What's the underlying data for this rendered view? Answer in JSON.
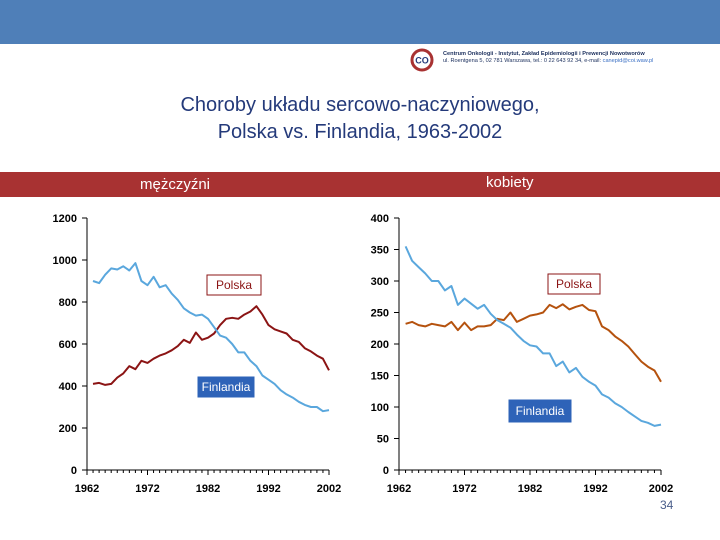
{
  "header": {
    "institution_line1": "Centrum Onkologii - Instytut, Zakład Epidemiologii i Prewencji Nowotworów",
    "institution_line2": "ul. Roentgena 5, 02 781 Warszawa, tel.: 0 22 643 92 34, e-mail:",
    "institution_email": "canepid@coi.waw.pl",
    "logo_text": "CO"
  },
  "slide": {
    "title_line1": "Choroby układu sercowo-naczyniowego,",
    "title_line2": "Polska vs. Finlandia, 1963-2002",
    "page_number": "34"
  },
  "colors": {
    "header_bar": "#4f7fb8",
    "band": "#a83232",
    "polska": "#8b1414",
    "polska_women": "#b5520e",
    "finlandia": "#5aa7dd",
    "finlandia_label_bg": "#2e63b8"
  },
  "chart_data": [
    {
      "type": "line",
      "title": "mężczyźni",
      "xlabel": "",
      "ylabel": "",
      "xlim": [
        1962,
        2002
      ],
      "ylim": [
        0,
        1200
      ],
      "x_ticks": [
        1962,
        1972,
        1982,
        1992,
        2002
      ],
      "y_ticks": [
        0,
        200,
        400,
        600,
        800,
        1000,
        1200
      ],
      "grid": false,
      "series": [
        {
          "name": "Polska",
          "label": "Polska",
          "x": [
            1963,
            1964,
            1965,
            1966,
            1967,
            1968,
            1969,
            1970,
            1971,
            1972,
            1973,
            1974,
            1975,
            1976,
            1977,
            1978,
            1979,
            1980,
            1981,
            1982,
            1983,
            1984,
            1985,
            1986,
            1987,
            1988,
            1989,
            1990,
            1991,
            1992,
            1993,
            1994,
            1995,
            1996,
            1997,
            1998,
            1999,
            2000,
            2001,
            2002
          ],
          "y": [
            410,
            415,
            405,
            410,
            440,
            460,
            495,
            480,
            520,
            510,
            530,
            545,
            555,
            570,
            590,
            620,
            605,
            655,
            620,
            630,
            650,
            690,
            720,
            725,
            720,
            740,
            755,
            780,
            740,
            690,
            670,
            660,
            650,
            620,
            610,
            580,
            565,
            545,
            530,
            475
          ]
        },
        {
          "name": "Finlandia",
          "label": "Finlandia",
          "x": [
            1963,
            1964,
            1965,
            1966,
            1967,
            1968,
            1969,
            1970,
            1971,
            1972,
            1973,
            1974,
            1975,
            1976,
            1977,
            1978,
            1979,
            1980,
            1981,
            1982,
            1983,
            1984,
            1985,
            1986,
            1987,
            1988,
            1989,
            1990,
            1991,
            1992,
            1993,
            1994,
            1995,
            1996,
            1997,
            1998,
            1999,
            2000,
            2001,
            2002
          ],
          "y": [
            900,
            890,
            930,
            960,
            955,
            970,
            950,
            985,
            900,
            880,
            920,
            870,
            880,
            840,
            810,
            770,
            750,
            735,
            740,
            720,
            680,
            640,
            630,
            600,
            560,
            560,
            520,
            495,
            450,
            430,
            410,
            380,
            360,
            345,
            325,
            310,
            300,
            300,
            280,
            285
          ]
        }
      ]
    },
    {
      "type": "line",
      "title": "kobiety",
      "xlabel": "",
      "ylabel": "",
      "xlim": [
        1962,
        2002
      ],
      "ylim": [
        0,
        400
      ],
      "x_ticks": [
        1962,
        1972,
        1982,
        1992,
        2002
      ],
      "y_ticks": [
        0,
        50,
        100,
        150,
        200,
        250,
        300,
        350,
        400
      ],
      "grid": false,
      "series": [
        {
          "name": "Polska",
          "label": "Polska",
          "x": [
            1963,
            1964,
            1965,
            1966,
            1967,
            1968,
            1969,
            1970,
            1971,
            1972,
            1973,
            1974,
            1975,
            1976,
            1977,
            1978,
            1979,
            1980,
            1981,
            1982,
            1983,
            1984,
            1985,
            1986,
            1987,
            1988,
            1989,
            1990,
            1991,
            1992,
            1993,
            1994,
            1995,
            1996,
            1997,
            1998,
            1999,
            2000,
            2001,
            2002
          ],
          "y": [
            232,
            235,
            230,
            228,
            232,
            230,
            228,
            235,
            222,
            234,
            222,
            228,
            228,
            230,
            240,
            238,
            250,
            235,
            240,
            245,
            247,
            250,
            262,
            257,
            263,
            255,
            259,
            262,
            254,
            252,
            228,
            222,
            212,
            205,
            196,
            184,
            172,
            164,
            158,
            140
          ]
        },
        {
          "name": "Finlandia",
          "label": "Finlandia",
          "x": [
            1963,
            1964,
            1965,
            1966,
            1967,
            1968,
            1969,
            1970,
            1971,
            1972,
            1973,
            1974,
            1975,
            1976,
            1977,
            1978,
            1979,
            1980,
            1981,
            1982,
            1983,
            1984,
            1985,
            1986,
            1987,
            1988,
            1989,
            1990,
            1991,
            1992,
            1993,
            1994,
            1995,
            1996,
            1997,
            1998,
            1999,
            2000,
            2001,
            2002
          ],
          "y": [
            355,
            332,
            322,
            312,
            300,
            300,
            285,
            292,
            262,
            272,
            264,
            256,
            262,
            248,
            238,
            232,
            226,
            215,
            205,
            198,
            196,
            185,
            185,
            165,
            172,
            155,
            162,
            148,
            140,
            134,
            120,
            115,
            106,
            100,
            92,
            85,
            78,
            75,
            70,
            72
          ]
        }
      ]
    }
  ]
}
